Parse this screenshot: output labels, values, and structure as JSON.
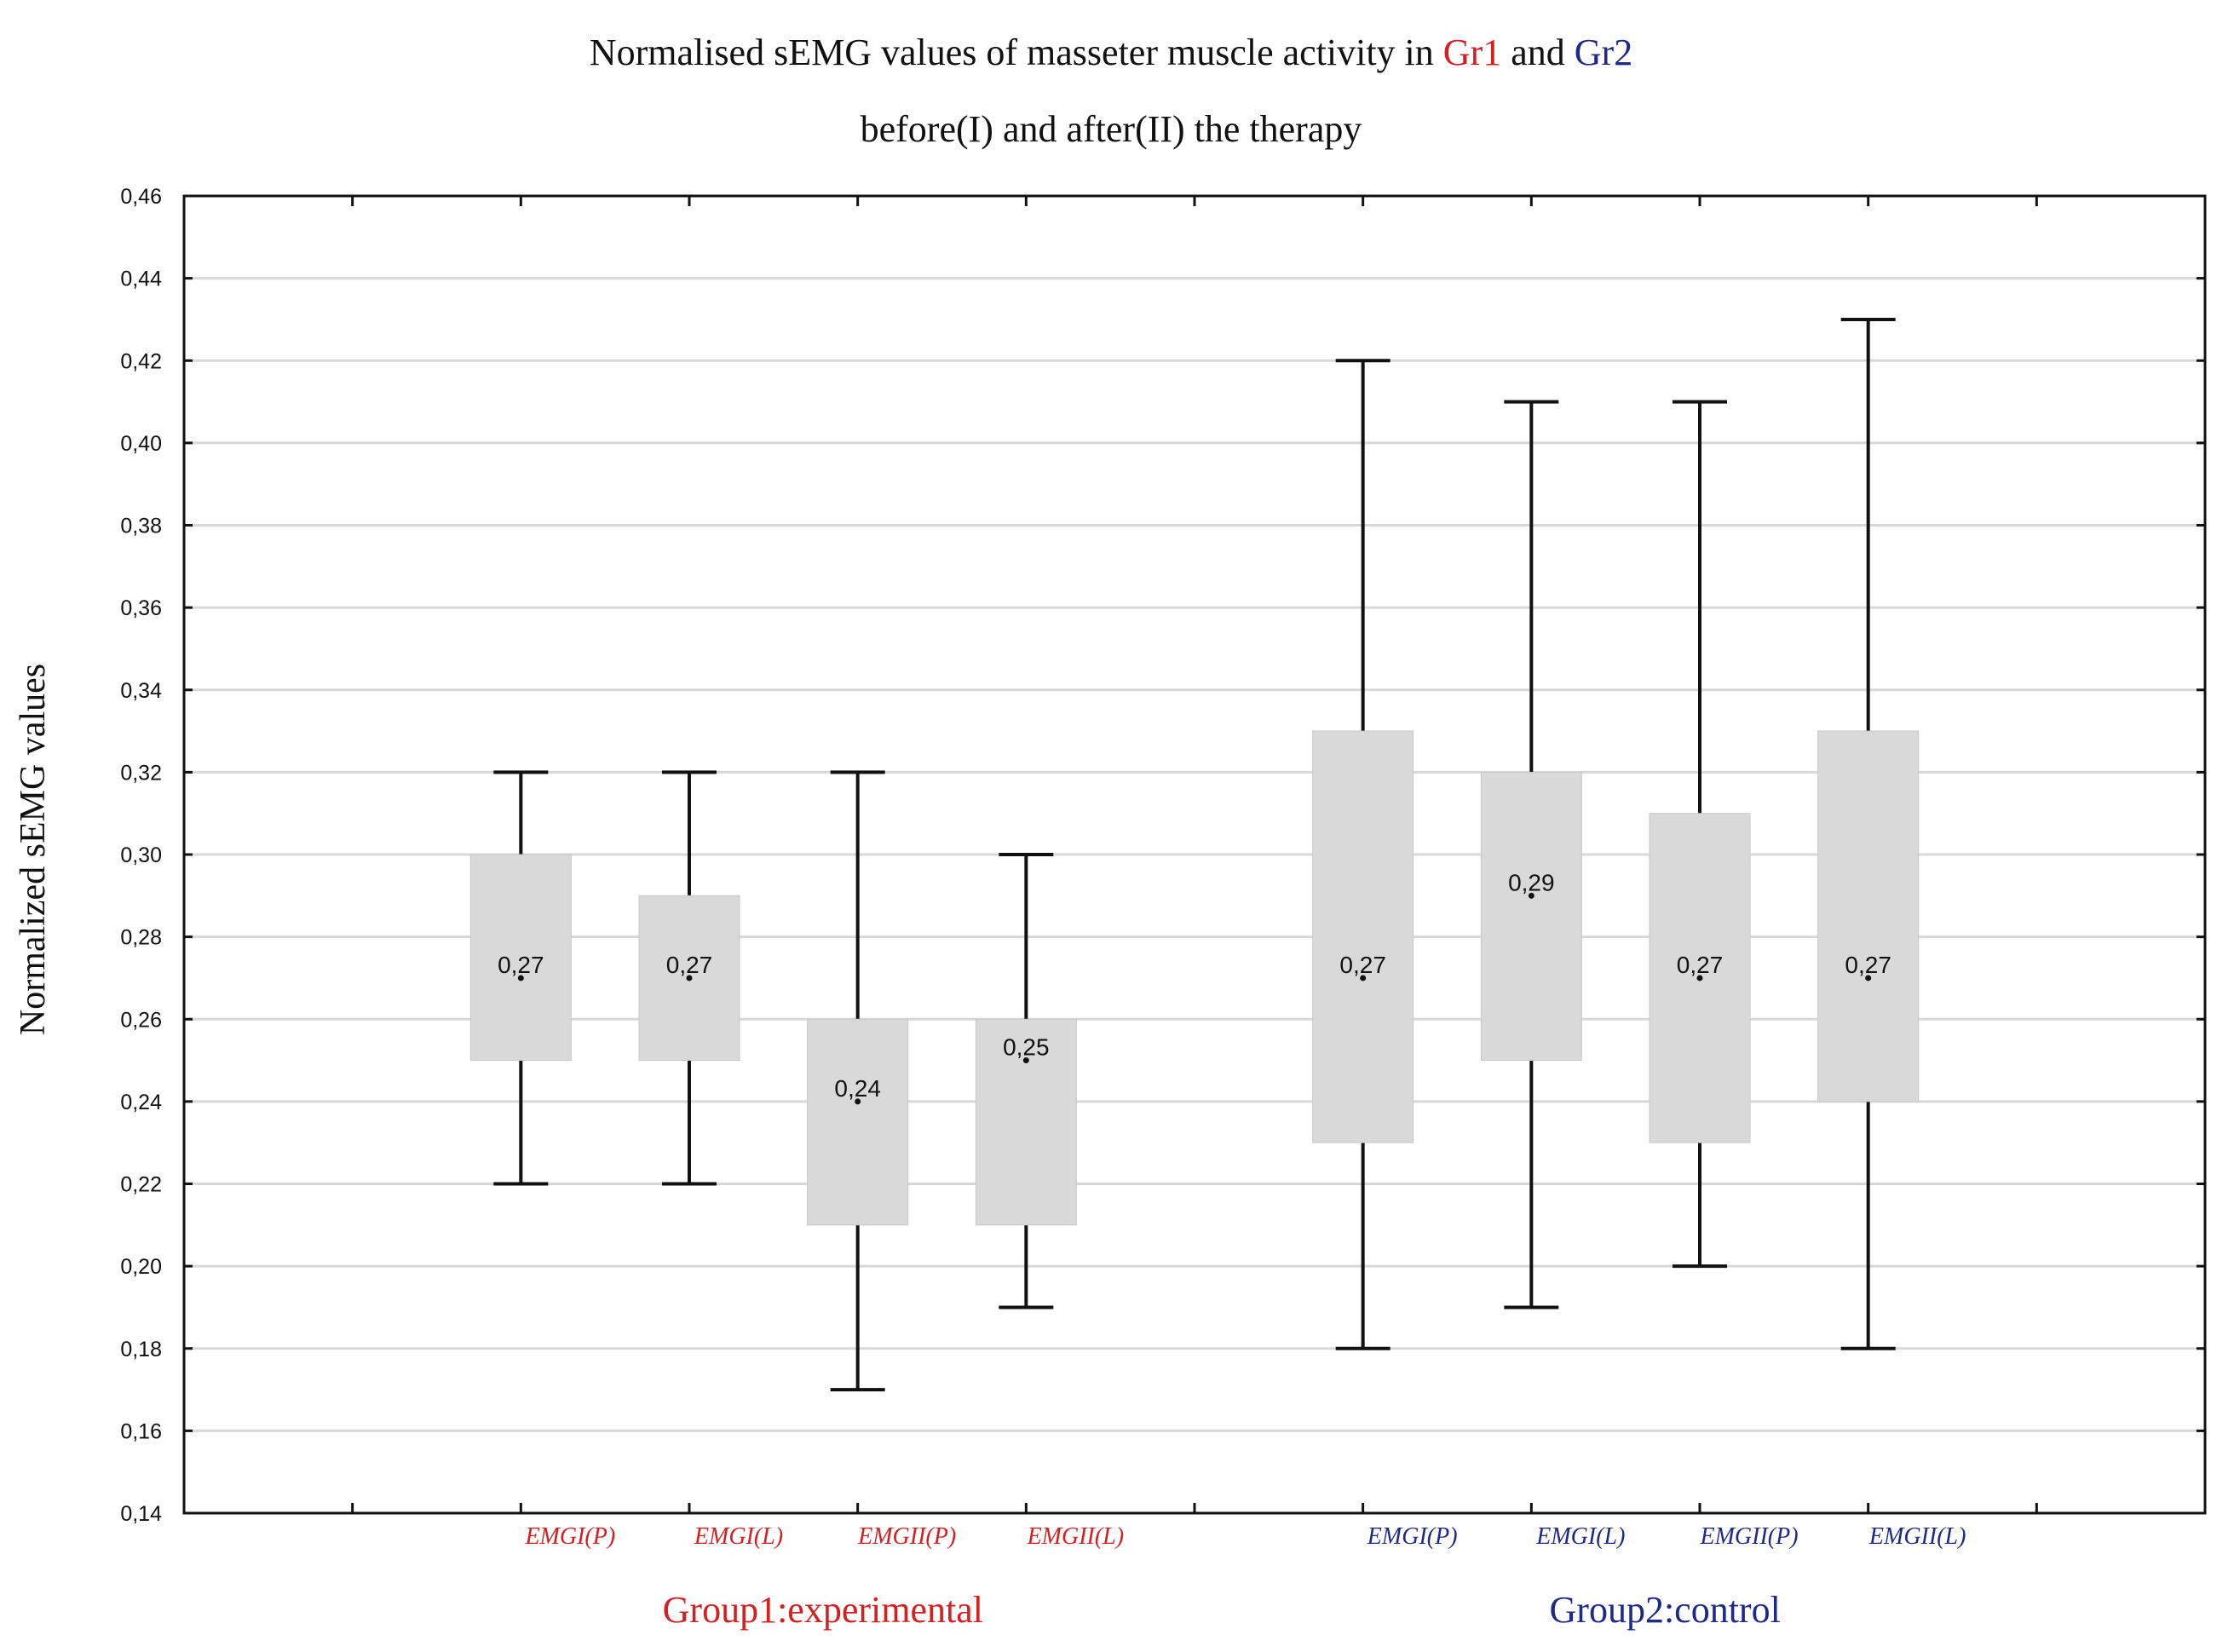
{
  "chart_data": {
    "type": "boxplot",
    "title": {
      "line1_prefix": "Normalised sEMG values of masseter muscle  activity in ",
      "line1_gr1": "Gr1",
      "line1_and": " and ",
      "line1_gr2": "Gr2",
      "line2": "before(I) and after(II) the therapy"
    },
    "ylabel": "Normalized sEMG values",
    "xlabel": "",
    "ylim": [
      0.14,
      0.46
    ],
    "ytick_step": 0.02,
    "yticks": [
      "0,14",
      "0,16",
      "0,18",
      "0,20",
      "0,22",
      "0,24",
      "0,26",
      "0,28",
      "0,30",
      "0,32",
      "0,34",
      "0,36",
      "0,38",
      "0,40",
      "0,42",
      "0,44",
      "0,46"
    ],
    "grid": true,
    "x_slots": 12,
    "colors": {
      "group1": "#d42020",
      "group2": "#1f2a86",
      "box_fill": "#d9d9d9",
      "axis": "#111111",
      "grid": "#d8d8d8"
    },
    "groups": [
      {
        "label": "Group1:experimental",
        "color": "#d42020",
        "slot_start": 2,
        "slot_end": 5
      },
      {
        "label": "Group2:control",
        "color": "#1f2a86",
        "slot_start": 7,
        "slot_end": 10
      }
    ],
    "series": [
      {
        "name": "EMGI(P)",
        "group": 0,
        "slot": 2,
        "median": 0.27,
        "median_label": "0,27",
        "q1": 0.25,
        "q3": 0.3,
        "min": 0.22,
        "max": 0.32
      },
      {
        "name": "EMGI(L)",
        "group": 0,
        "slot": 3,
        "median": 0.27,
        "median_label": "0,27",
        "q1": 0.25,
        "q3": 0.29,
        "min": 0.22,
        "max": 0.32
      },
      {
        "name": "EMGII(P)",
        "group": 0,
        "slot": 4,
        "median": 0.24,
        "median_label": "0,24",
        "q1": 0.21,
        "q3": 0.26,
        "min": 0.17,
        "max": 0.32
      },
      {
        "name": "EMGII(L)",
        "group": 0,
        "slot": 5,
        "median": 0.25,
        "median_label": "0,25",
        "q1": 0.21,
        "q3": 0.26,
        "min": 0.19,
        "max": 0.3
      },
      {
        "name": "EMGI(P)",
        "group": 1,
        "slot": 7,
        "median": 0.27,
        "median_label": "0,27",
        "q1": 0.23,
        "q3": 0.33,
        "min": 0.18,
        "max": 0.42
      },
      {
        "name": "EMGI(L)",
        "group": 1,
        "slot": 8,
        "median": 0.29,
        "median_label": "0,29",
        "q1": 0.25,
        "q3": 0.32,
        "min": 0.19,
        "max": 0.41
      },
      {
        "name": "EMGII(P)",
        "group": 1,
        "slot": 9,
        "median": 0.27,
        "median_label": "0,27",
        "q1": 0.23,
        "q3": 0.31,
        "min": 0.2,
        "max": 0.41
      },
      {
        "name": "EMGII(L)",
        "group": 1,
        "slot": 10,
        "median": 0.27,
        "median_label": "0,27",
        "q1": 0.24,
        "q3": 0.33,
        "min": 0.18,
        "max": 0.43
      }
    ]
  }
}
